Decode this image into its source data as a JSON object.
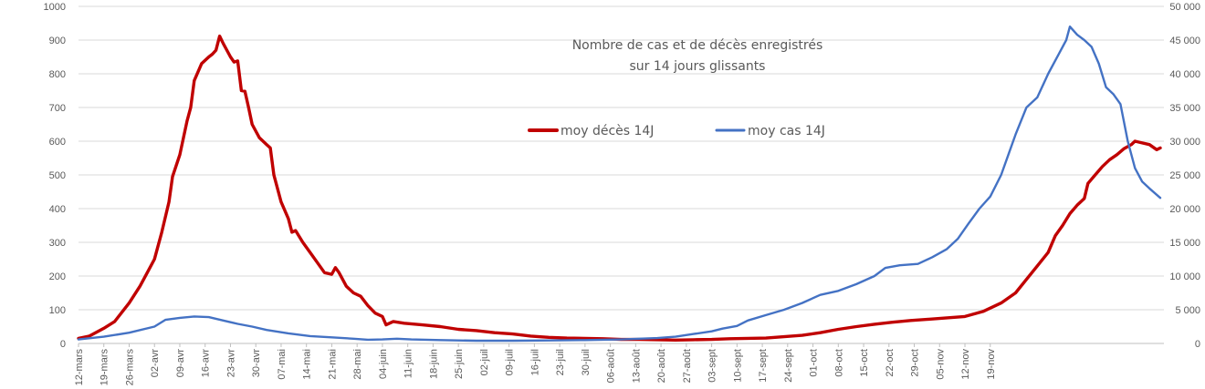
{
  "chart_data": {
    "type": "line",
    "title_lines": [
      "Nombre de cas et de décès enregistrés",
      "sur 14 jours glissants"
    ],
    "x_tick_labels": [
      "12-mars",
      "19-mars",
      "26-mars",
      "02-avr",
      "09-avr",
      "16-avr",
      "23-avr",
      "30-avr",
      "07-mai",
      "14-mai",
      "21-mai",
      "28-mai",
      "04-juin",
      "11-juin",
      "18-juin",
      "25-juin",
      "02-juil",
      "09-juil",
      "16-juil",
      "23-juil",
      "30-juil",
      "06-août",
      "13-août",
      "20-août",
      "27-août",
      "03-sept",
      "10-sept",
      "17-sept",
      "24-sept",
      "01-oct",
      "08-oct",
      "15-oct",
      "22-oct",
      "29-oct",
      "05-nov",
      "12-nov",
      "19-nov"
    ],
    "y_left": {
      "min": 0,
      "max": 1000,
      "ticks": [
        "0",
        "100",
        "200",
        "300",
        "400",
        "500",
        "600",
        "700",
        "800",
        "900",
        "1000"
      ]
    },
    "y_right": {
      "min": 0,
      "max": 50000,
      "ticks": [
        "0",
        "5 000",
        "10 000",
        "15 000",
        "20 000",
        "25 000",
        "30 000",
        "35 000",
        "40 000",
        "45 000",
        "50 000"
      ]
    },
    "grid": true,
    "legend_position": "upper-center",
    "series": [
      {
        "name": "moy décès 14J",
        "axis": "left",
        "color": "#C00000",
        "points": [
          [
            0,
            15
          ],
          [
            3,
            22
          ],
          [
            7,
            45
          ],
          [
            10,
            65
          ],
          [
            14,
            120
          ],
          [
            17,
            170
          ],
          [
            19,
            210
          ],
          [
            21,
            250
          ],
          [
            23,
            330
          ],
          [
            25,
            420
          ],
          [
            26,
            495
          ],
          [
            28,
            560
          ],
          [
            30,
            660
          ],
          [
            31,
            700
          ],
          [
            32,
            780
          ],
          [
            34,
            830
          ],
          [
            36,
            850
          ],
          [
            37,
            858
          ],
          [
            38,
            870
          ],
          [
            39,
            912
          ],
          [
            40,
            890
          ],
          [
            42,
            850
          ],
          [
            43,
            835
          ],
          [
            44,
            838
          ],
          [
            45,
            750
          ],
          [
            46,
            748
          ],
          [
            47,
            700
          ],
          [
            48,
            650
          ],
          [
            50,
            610
          ],
          [
            52,
            590
          ],
          [
            53,
            580
          ],
          [
            54,
            500
          ],
          [
            56,
            420
          ],
          [
            58,
            370
          ],
          [
            59,
            330
          ],
          [
            60,
            335
          ],
          [
            62,
            300
          ],
          [
            64,
            270
          ],
          [
            66,
            240
          ],
          [
            68,
            210
          ],
          [
            70,
            205
          ],
          [
            71,
            225
          ],
          [
            72,
            210
          ],
          [
            74,
            170
          ],
          [
            76,
            150
          ],
          [
            78,
            140
          ],
          [
            80,
            112
          ],
          [
            82,
            90
          ],
          [
            84,
            80
          ],
          [
            85,
            55
          ],
          [
            87,
            65
          ],
          [
            90,
            60
          ],
          [
            95,
            55
          ],
          [
            100,
            50
          ],
          [
            105,
            42
          ],
          [
            110,
            38
          ],
          [
            115,
            32
          ],
          [
            120,
            28
          ],
          [
            125,
            22
          ],
          [
            130,
            18
          ],
          [
            135,
            16
          ],
          [
            140,
            15
          ],
          [
            145,
            14
          ],
          [
            150,
            12
          ],
          [
            155,
            12
          ],
          [
            160,
            11
          ],
          [
            165,
            10
          ],
          [
            170,
            11
          ],
          [
            175,
            12
          ],
          [
            180,
            14
          ],
          [
            185,
            15
          ],
          [
            190,
            16
          ],
          [
            195,
            20
          ],
          [
            200,
            24
          ],
          [
            205,
            32
          ],
          [
            210,
            42
          ],
          [
            215,
            50
          ],
          [
            220,
            57
          ],
          [
            225,
            63
          ],
          [
            230,
            68
          ],
          [
            235,
            72
          ],
          [
            240,
            76
          ],
          [
            245,
            80
          ],
          [
            250,
            95
          ],
          [
            255,
            120
          ],
          [
            259,
            150
          ],
          [
            262,
            190
          ],
          [
            265,
            230
          ],
          [
            268,
            270
          ],
          [
            270,
            320
          ],
          [
            272,
            350
          ],
          [
            274,
            385
          ],
          [
            276,
            410
          ],
          [
            278,
            430
          ],
          [
            279,
            475
          ],
          [
            281,
            500
          ],
          [
            283,
            525
          ],
          [
            285,
            545
          ],
          [
            287,
            560
          ],
          [
            289,
            578
          ],
          [
            291,
            590
          ],
          [
            292,
            600
          ],
          [
            294,
            595
          ],
          [
            296,
            590
          ],
          [
            298,
            575
          ],
          [
            299,
            580
          ]
        ]
      },
      {
        "name": "moy cas 14J",
        "axis": "right",
        "color": "#4472C4",
        "points": [
          [
            0,
            600
          ],
          [
            7,
            1000
          ],
          [
            14,
            1600
          ],
          [
            21,
            2500
          ],
          [
            24,
            3500
          ],
          [
            28,
            3800
          ],
          [
            32,
            4000
          ],
          [
            36,
            3900
          ],
          [
            40,
            3400
          ],
          [
            44,
            2900
          ],
          [
            48,
            2500
          ],
          [
            52,
            2000
          ],
          [
            58,
            1500
          ],
          [
            64,
            1100
          ],
          [
            70,
            900
          ],
          [
            76,
            700
          ],
          [
            80,
            550
          ],
          [
            84,
            600
          ],
          [
            88,
            700
          ],
          [
            92,
            600
          ],
          [
            100,
            500
          ],
          [
            110,
            400
          ],
          [
            120,
            400
          ],
          [
            130,
            450
          ],
          [
            140,
            500
          ],
          [
            150,
            600
          ],
          [
            160,
            800
          ],
          [
            165,
            1000
          ],
          [
            170,
            1400
          ],
          [
            175,
            1800
          ],
          [
            178,
            2200
          ],
          [
            182,
            2600
          ],
          [
            185,
            3400
          ],
          [
            190,
            4200
          ],
          [
            195,
            5000
          ],
          [
            200,
            6000
          ],
          [
            205,
            7200
          ],
          [
            210,
            7800
          ],
          [
            215,
            8800
          ],
          [
            220,
            10000
          ],
          [
            223,
            11200
          ],
          [
            227,
            11600
          ],
          [
            232,
            11800
          ],
          [
            236,
            12800
          ],
          [
            240,
            14000
          ],
          [
            243,
            15500
          ],
          [
            246,
            17800
          ],
          [
            249,
            20000
          ],
          [
            252,
            21800
          ],
          [
            255,
            25000
          ],
          [
            257,
            28000
          ],
          [
            259,
            31000
          ],
          [
            262,
            35000
          ],
          [
            265,
            36500
          ],
          [
            268,
            40000
          ],
          [
            271,
            43000
          ],
          [
            273,
            45000
          ],
          [
            274,
            47000
          ],
          [
            276,
            45800
          ],
          [
            278,
            45000
          ],
          [
            280,
            44000
          ],
          [
            282,
            41500
          ],
          [
            284,
            38000
          ],
          [
            286,
            37000
          ],
          [
            288,
            35500
          ],
          [
            290,
            30000
          ],
          [
            292,
            26000
          ],
          [
            294,
            24000
          ],
          [
            296,
            23000
          ],
          [
            299,
            21600
          ]
        ]
      }
    ]
  }
}
